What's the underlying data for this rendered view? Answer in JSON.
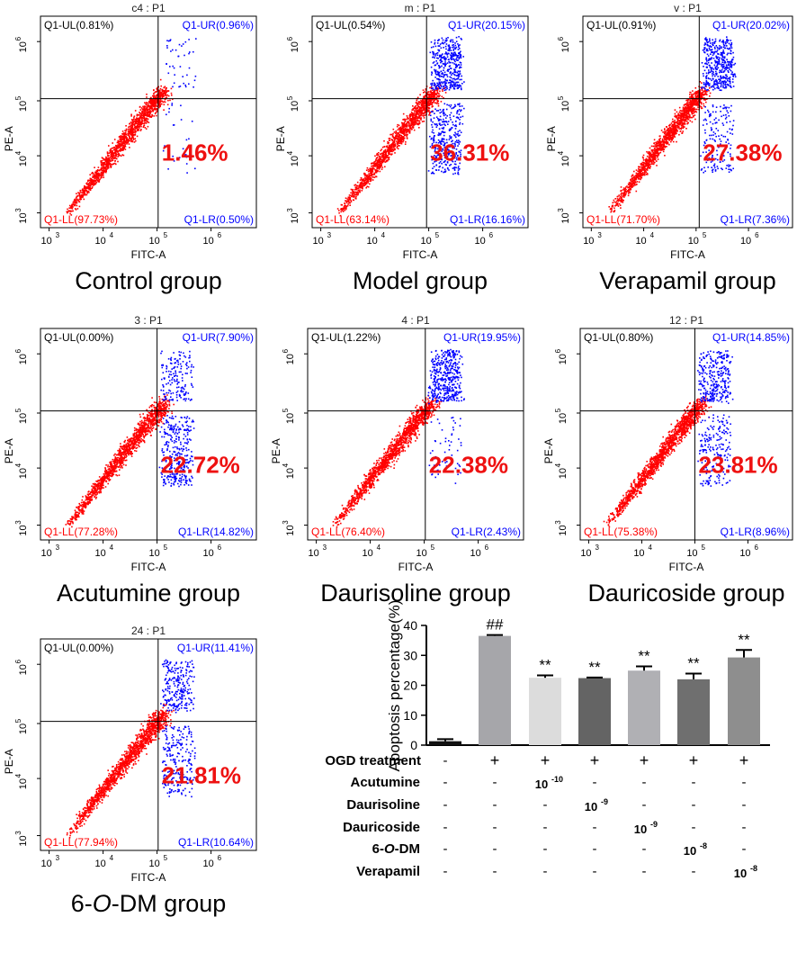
{
  "figure": {
    "panels": [
      {
        "title": "c4 : P1",
        "group_label": "Control group",
        "ul": "Q1-UL(0.81%)",
        "ur": "Q1-UR(0.96%)",
        "ll": "Q1-LL(97.73%)",
        "lr": "Q1-LR(0.50%)",
        "big_pct": "1.46%",
        "lr_fraction": 0.005,
        "ur_fraction": 0.0096
      },
      {
        "title": "m : P1",
        "group_label": "Model group",
        "ul": "Q1-UL(0.54%)",
        "ur": "Q1-UR(20.15%)",
        "ll": "Q1-LL(63.14%)",
        "lr": "Q1-LR(16.16%)",
        "big_pct": "36.31%",
        "lr_fraction": 0.1616,
        "ur_fraction": 0.2015
      },
      {
        "title": "v : P1",
        "group_label": "Verapamil group",
        "ul": "Q1-UL(0.91%)",
        "ur": "Q1-UR(20.02%)",
        "ll": "Q1-LL(71.70%)",
        "lr": "Q1-LR(7.36%)",
        "big_pct": "27.38%",
        "lr_fraction": 0.0736,
        "ur_fraction": 0.2002
      },
      {
        "title": "3 : P1",
        "group_label": "Acutumine group",
        "ul": "Q1-UL(0.00%)",
        "ur": "Q1-UR(7.90%)",
        "ll": "Q1-LL(77.28%)",
        "lr": "Q1-LR(14.82%)",
        "big_pct": "22.72%",
        "lr_fraction": 0.1482,
        "ur_fraction": 0.079
      },
      {
        "title": "4 : P1",
        "group_label": "Daurisoline group",
        "ul": "Q1-UL(1.22%)",
        "ur": "Q1-UR(19.95%)",
        "ll": "Q1-LL(76.40%)",
        "lr": "Q1-LR(2.43%)",
        "big_pct": "22.38%",
        "lr_fraction": 0.0243,
        "ur_fraction": 0.1995
      },
      {
        "title": "12 : P1",
        "group_label": "Dauricoside group",
        "ul": "Q1-UL(0.80%)",
        "ur": "Q1-UR(14.85%)",
        "ll": "Q1-LL(75.38%)",
        "lr": "Q1-LR(8.96%)",
        "big_pct": "23.81%",
        "lr_fraction": 0.0896,
        "ur_fraction": 0.1485
      },
      {
        "title": "24 : P1",
        "group_label": "6-O-DM group",
        "ul": "Q1-UL(0.00%)",
        "ur": "Q1-UR(11.41%)",
        "ll": "Q1-LL(77.94%)",
        "lr": "Q1-LR(10.64%)",
        "big_pct": "21.81%",
        "lr_fraction": 0.1064,
        "ur_fraction": 0.1141
      }
    ],
    "axis": {
      "x_label": "FITC-A",
      "y_label": "PE-A",
      "ticks": [
        "3",
        "4",
        "5",
        "6"
      ],
      "tick_base": "10"
    },
    "colors": {
      "live": "#ff0000",
      "apoptotic": "#0000ff",
      "big_pct": "#ee1111",
      "bars": [
        "#111111",
        "#a6a6aa",
        "#dcdcdc",
        "#646464",
        "#b0b0b4",
        "#6f6f6f",
        "#8e8e8e"
      ]
    }
  },
  "chart_data": {
    "type": "bar",
    "ylabel": "Apoptosis percentage(%)",
    "ylim": [
      0,
      40
    ],
    "yticks": [
      "0",
      "10",
      "20",
      "30",
      "40"
    ],
    "values": [
      1.3,
      36.5,
      22.5,
      22.4,
      24.9,
      22.0,
      29.3
    ],
    "errors": [
      0.7,
      0.3,
      0.8,
      0.2,
      1.4,
      1.9,
      2.5
    ],
    "annotations": [
      "",
      "##",
      "**",
      "**",
      "**",
      "**",
      "**"
    ],
    "treatment_rows": [
      {
        "label": "OGD treatment",
        "marks": [
          "-",
          "+",
          "+",
          "+",
          "+",
          "+",
          "+"
        ]
      },
      {
        "label": "Acutumine",
        "marks": [
          "-",
          "-",
          "10",
          "-",
          "-",
          "-",
          "-"
        ],
        "exps": [
          "",
          "",
          "-10",
          "",
          "",
          "",
          ""
        ]
      },
      {
        "label": "Daurisoline",
        "marks": [
          "-",
          "-",
          "-",
          "10",
          "-",
          "-",
          "-"
        ],
        "exps": [
          "",
          "",
          "",
          "-9",
          "",
          "",
          ""
        ]
      },
      {
        "label": "Dauricoside",
        "marks": [
          "-",
          "-",
          "-",
          "-",
          "10",
          "-",
          "-"
        ],
        "exps": [
          "",
          "",
          "",
          "",
          "-9",
          "",
          ""
        ]
      },
      {
        "label": "6-O-DM",
        "marks": [
          "-",
          "-",
          "-",
          "-",
          "-",
          "10",
          "-"
        ],
        "exps": [
          "",
          "",
          "",
          "",
          "",
          "-8",
          ""
        ]
      },
      {
        "label": "Verapamil",
        "marks": [
          "-",
          "-",
          "-",
          "-",
          "-",
          "-",
          "10"
        ],
        "exps": [
          "",
          "",
          "",
          "",
          "",
          "",
          "-8"
        ]
      }
    ]
  }
}
